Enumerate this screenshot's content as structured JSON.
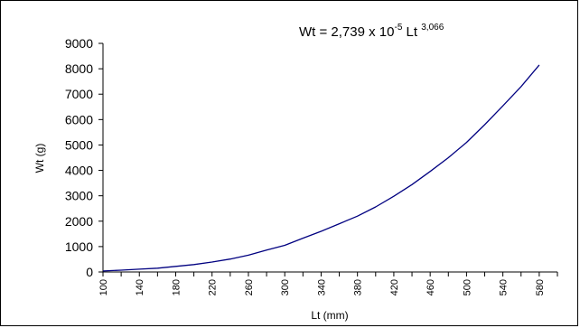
{
  "chart_data": {
    "type": "line",
    "title": "",
    "xlabel": "Lt (mm)",
    "ylabel": "Wt (g)",
    "equation": {
      "base": "Wt = 2,739 x 10",
      "exp1": "-5",
      "mid": " Lt ",
      "exp2": "3,066"
    },
    "xlim": [
      100,
      600
    ],
    "ylim": [
      0,
      9000
    ],
    "x_ticks": [
      100,
      140,
      180,
      220,
      260,
      300,
      340,
      380,
      420,
      460,
      500,
      540,
      580
    ],
    "y_ticks": [
      0,
      1000,
      2000,
      3000,
      4000,
      5000,
      6000,
      7000,
      8000,
      9000
    ],
    "grid": false,
    "legend": "none",
    "series": [
      {
        "color": "#000080",
        "x": [
          100,
          120,
          140,
          160,
          180,
          200,
          220,
          240,
          260,
          280,
          300,
          320,
          340,
          360,
          380,
          400,
          420,
          440,
          460,
          480,
          500,
          520,
          540,
          560,
          580
        ],
        "y": [
          40,
          70,
          110,
          150,
          220,
          290,
          390,
          510,
          660,
          860,
          1050,
          1330,
          1600,
          1900,
          2200,
          2560,
          2980,
          3440,
          3960,
          4500,
          5100,
          5800,
          6540,
          7300,
          8150
        ]
      }
    ]
  }
}
